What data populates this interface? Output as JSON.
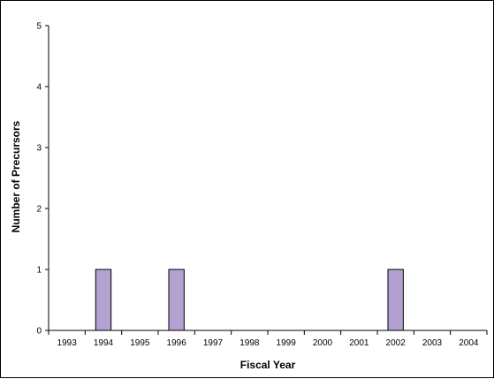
{
  "chart_data": {
    "type": "bar",
    "title": "",
    "xlabel": "Fiscal Year",
    "ylabel": "Number of Precursors",
    "categories": [
      "1993",
      "1994",
      "1995",
      "1996",
      "1997",
      "1998",
      "1999",
      "2000",
      "2001",
      "2002",
      "2003",
      "2004"
    ],
    "values": [
      0,
      1,
      0,
      1,
      0,
      0,
      0,
      0,
      0,
      1,
      0,
      0
    ],
    "ylim": [
      0,
      5
    ],
    "yticks": [
      0,
      1,
      2,
      3,
      4,
      5
    ],
    "grid": false,
    "legend": "none",
    "bar_color": "#b3a2d1",
    "bar_edge_color": "#000000"
  }
}
